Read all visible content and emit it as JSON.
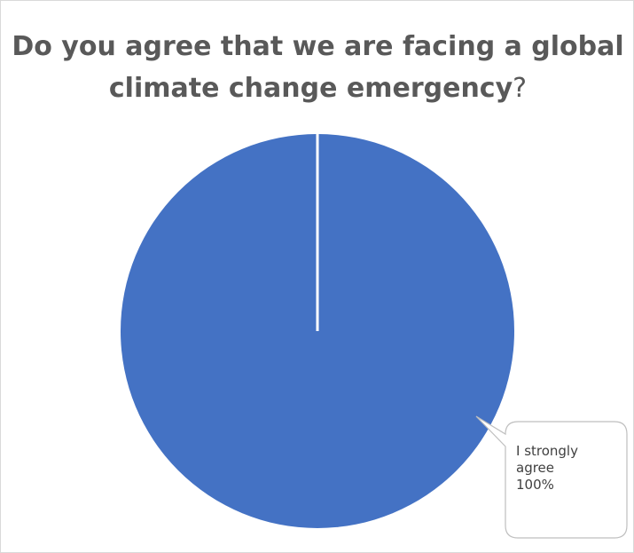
{
  "chart_data": {
    "type": "pie",
    "title": "Do you agree that we are facing a global climate change emergency",
    "title_end": "?",
    "categories": [
      "I strongly agree"
    ],
    "values": [
      100
    ],
    "value_labels": [
      "100%"
    ],
    "colors": [
      "#4472C4"
    ],
    "legend": "none",
    "data_labels": "callout"
  },
  "style": {
    "title_color": "#595959",
    "frame_border": "#d9d9d9",
    "slice_border": "#ffffff",
    "callout_border": "#bfbfbf",
    "label_color": "#404040"
  }
}
